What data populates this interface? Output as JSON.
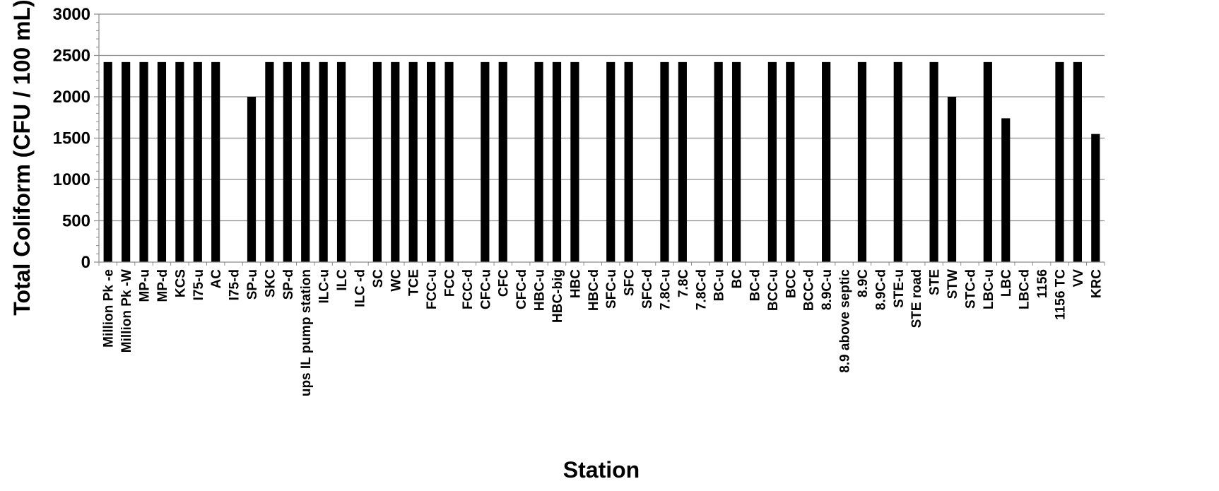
{
  "chart_data": {
    "type": "bar",
    "xlabel": "Station",
    "ylabel": "Total Coliform (CFU / 100 mL)",
    "ylim": [
      0,
      3000
    ],
    "yticks": [
      0,
      500,
      1000,
      1500,
      2000,
      2500,
      3000
    ],
    "grid": true,
    "bar_color": "#000000",
    "categories": [
      "Million Pk -e",
      "Million Pk -W",
      "MP-u",
      "MP-d",
      "KCS",
      "I75-u",
      "AC",
      "I75-d",
      "SP-u",
      "SKC",
      "SP-d",
      "ups IL pump station",
      "ILC-u",
      "ILC",
      "ILC -d",
      "SC",
      "WC",
      "TCE",
      "FCC-u",
      "FCC",
      "FCC-d",
      "CFC-u",
      "CFC",
      "CFC-d",
      "HBC-u",
      "HBC-big",
      "HBC",
      "HBC-d",
      "SFC-u",
      "SFC",
      "SFC-d",
      "7.8C-u",
      "7.8C",
      "7.8C-d",
      "BC-u",
      "BC",
      "BC-d",
      "BCC-u",
      "BCC",
      "BCC-d",
      "8.9C-u",
      "8.9 above septic",
      "8.9C",
      "8.9C-d",
      "STE-u",
      "STE road",
      "STE",
      "STW",
      "STC-d",
      "LBC-u",
      "LBC",
      "LBC-d",
      "1156",
      "1156 TC",
      "VV",
      "KRC"
    ],
    "values": [
      2420,
      2420,
      2420,
      2420,
      2420,
      2420,
      2420,
      0,
      2000,
      2420,
      2420,
      2420,
      2420,
      2420,
      0,
      2420,
      2420,
      2420,
      2420,
      2420,
      0,
      2420,
      2420,
      0,
      2420,
      2420,
      2420,
      0,
      2420,
      2420,
      0,
      2420,
      2420,
      0,
      2420,
      2420,
      0,
      2420,
      2420,
      0,
      2420,
      0,
      2420,
      0,
      2420,
      0,
      2420,
      2000,
      0,
      2420,
      1740,
      0,
      0,
      2420,
      2420,
      1550
    ]
  }
}
